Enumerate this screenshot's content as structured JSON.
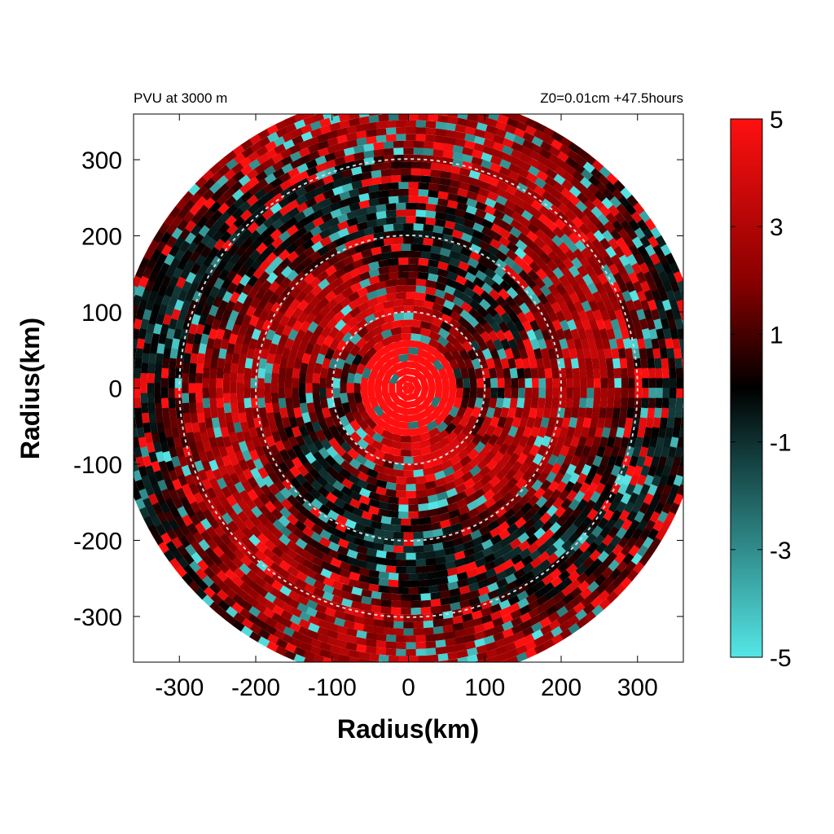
{
  "chart_data": {
    "type": "heatmap",
    "title": "PVU at  3000 m",
    "subtitle": "Z0=0.01cm  +47.5hours",
    "xlabel": "Radius(km)",
    "ylabel": "Radius(km)",
    "xlim": [
      -360,
      360
    ],
    "ylim": [
      -360,
      360
    ],
    "xticks": [
      -300,
      -200,
      -100,
      0,
      100,
      200,
      300
    ],
    "yticks": [
      300,
      200,
      100,
      0,
      -100,
      -200,
      -300
    ],
    "domain_radius_km": 380,
    "range_rings_km": [
      100,
      200,
      300
    ],
    "inner_core_radius_km": 60,
    "colorbar": {
      "min": -5,
      "max": 5,
      "ticks": [
        5,
        3,
        1,
        -1,
        -3,
        -5
      ],
      "colors": {
        "low": "#55e6e6",
        "neg_mid": "#1f5f5f",
        "zero": "#000000",
        "pos_mid": "#8a0000",
        "high": "#ff1010"
      }
    },
    "colors": {
      "ring": "#d8d8d8",
      "frame": "#000000"
    }
  }
}
